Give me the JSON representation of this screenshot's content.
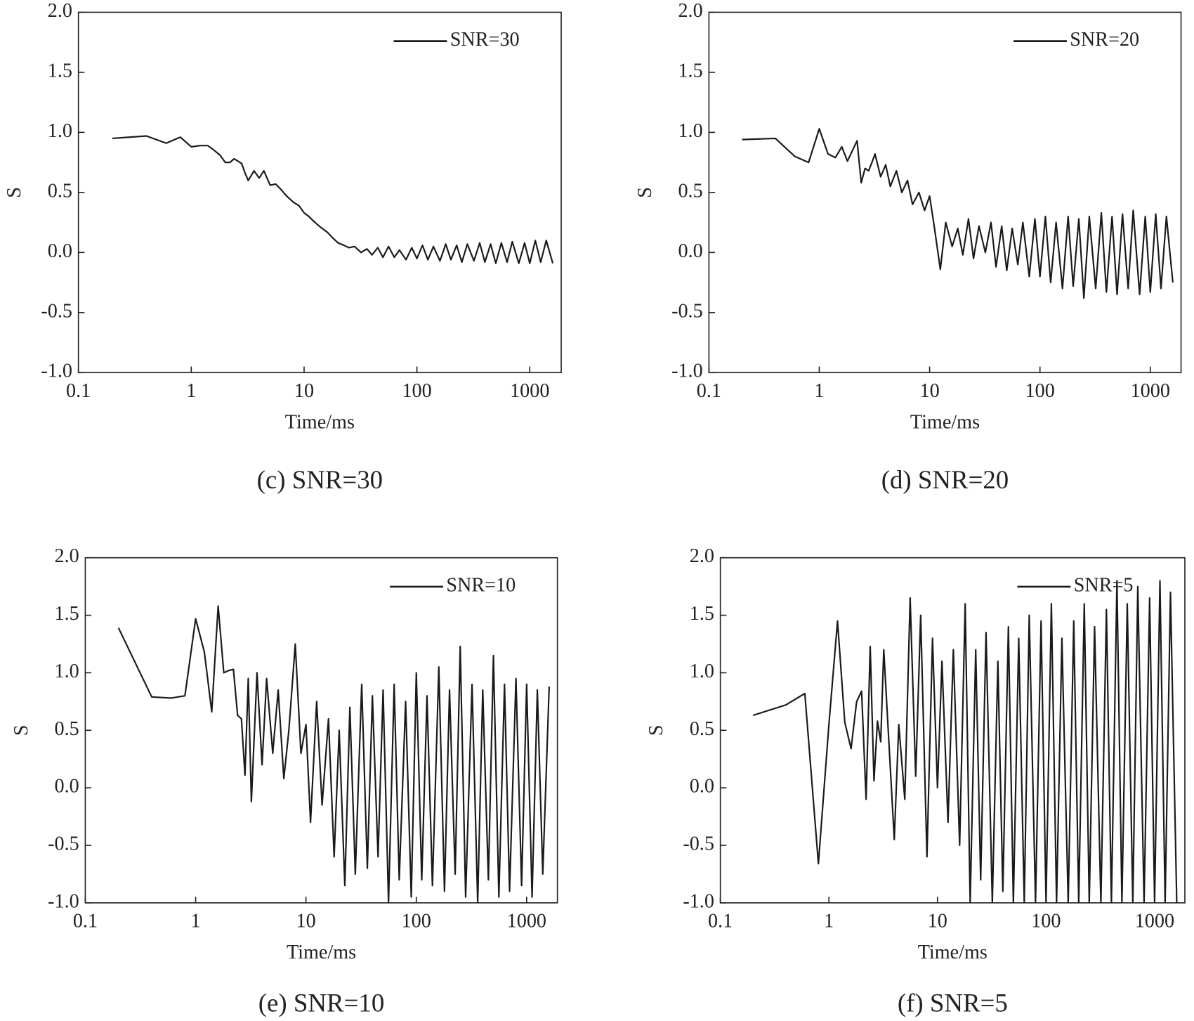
{
  "chart_data": [
    {
      "type": "line",
      "caption": "(c) SNR=30",
      "xlabel": "Time/ms",
      "ylabel": "S",
      "xscale": "log",
      "legend": "upper right",
      "xlim": [
        0.1,
        1900
      ],
      "xticks": [
        0.1,
        1,
        10,
        100,
        1000
      ],
      "ylim": [
        -1,
        2
      ],
      "yticks": [
        {
          "value": -1,
          "label": "-1.0"
        },
        -0.5,
        {
          "value": 0,
          "label": "0.0"
        },
        0.5,
        {
          "value": 1,
          "label": "1.0"
        },
        1.5,
        {
          "value": 2,
          "label": "2.0"
        }
      ],
      "x": [
        0.2,
        0.4,
        0.6,
        0.8,
        1,
        1.2,
        1.4,
        1.6,
        1.8,
        2,
        2.2,
        2.4,
        2.6,
        2.8,
        3,
        3.2,
        3.6,
        4,
        4.4,
        5,
        5.6,
        6.3,
        7,
        8,
        9,
        10,
        11,
        12.5,
        14,
        16,
        18,
        20,
        22.5,
        25,
        28,
        32,
        36,
        40,
        45,
        50,
        56,
        63,
        70,
        80,
        90,
        100,
        112,
        125,
        140,
        160,
        180,
        200,
        225,
        250,
        280,
        320,
        360,
        400,
        450,
        500,
        560,
        630,
        700,
        800,
        900,
        1000,
        1120,
        1250,
        1400,
        1600
      ],
      "series": [
        {
          "name": "SNR=30",
          "color": "#1a1a1a",
          "values": [
            0.95,
            0.97,
            0.91,
            0.96,
            0.88,
            0.89,
            0.89,
            0.85,
            0.81,
            0.75,
            0.75,
            0.78,
            0.76,
            0.74,
            0.66,
            0.6,
            0.68,
            0.62,
            0.68,
            0.56,
            0.57,
            0.52,
            0.47,
            0.42,
            0.39,
            0.33,
            0.3,
            0.25,
            0.21,
            0.17,
            0.12,
            0.08,
            0.06,
            0.04,
            0.05,
            0.0,
            0.03,
            -0.02,
            0.04,
            -0.04,
            0.05,
            -0.04,
            0.02,
            -0.06,
            0.04,
            -0.05,
            0.06,
            -0.06,
            0.05,
            -0.07,
            0.07,
            -0.06,
            0.06,
            -0.08,
            0.07,
            -0.07,
            0.08,
            -0.08,
            0.07,
            -0.09,
            0.08,
            -0.08,
            0.09,
            -0.09,
            0.08,
            -0.09,
            0.1,
            -0.08,
            0.1,
            -0.09
          ]
        }
      ]
    },
    {
      "type": "line",
      "caption": "(d) SNR=20",
      "xlabel": "Time/ms",
      "ylabel": "S",
      "xscale": "log",
      "legend": "upper right",
      "xlim": [
        0.1,
        1900
      ],
      "xticks": [
        0.1,
        1,
        10,
        100,
        1000
      ],
      "ylim": [
        -1,
        2
      ],
      "yticks": [
        {
          "value": -1,
          "label": "-1.0"
        },
        -0.5,
        {
          "value": 0,
          "label": "0.0"
        },
        0.5,
        {
          "value": 1,
          "label": "1.0"
        },
        1.5,
        {
          "value": 2,
          "label": "2.0"
        }
      ],
      "x": [
        0.2,
        0.4,
        0.6,
        0.8,
        1,
        1.2,
        1.4,
        1.6,
        1.8,
        2,
        2.2,
        2.4,
        2.6,
        2.8,
        3,
        3.2,
        3.6,
        4,
        4.4,
        5,
        5.6,
        6.3,
        7,
        8,
        9,
        10,
        11,
        12.5,
        14,
        16,
        18,
        20,
        22.5,
        25,
        28,
        32,
        36,
        40,
        45,
        50,
        56,
        63,
        70,
        80,
        90,
        100,
        112,
        125,
        140,
        160,
        180,
        200,
        225,
        250,
        280,
        320,
        360,
        400,
        450,
        500,
        560,
        630,
        700,
        800,
        900,
        1000,
        1120,
        1250,
        1400,
        1600
      ],
      "series": [
        {
          "name": "SNR=20",
          "color": "#1a1a1a",
          "values": [
            0.94,
            0.95,
            0.8,
            0.75,
            1.03,
            0.82,
            0.79,
            0.88,
            0.76,
            0.85,
            0.93,
            0.58,
            0.7,
            0.68,
            0.75,
            0.82,
            0.63,
            0.73,
            0.55,
            0.68,
            0.5,
            0.6,
            0.4,
            0.5,
            0.35,
            0.47,
            0.22,
            -0.14,
            0.25,
            0.05,
            0.2,
            -0.02,
            0.28,
            -0.05,
            0.22,
            0.0,
            0.25,
            -0.12,
            0.22,
            -0.15,
            0.2,
            -0.1,
            0.25,
            -0.2,
            0.28,
            -0.2,
            0.3,
            -0.25,
            0.25,
            -0.3,
            0.3,
            -0.28,
            0.28,
            -0.38,
            0.3,
            -0.3,
            0.33,
            -0.33,
            0.3,
            -0.35,
            0.32,
            -0.3,
            0.35,
            -0.35,
            0.3,
            -0.33,
            0.32,
            -0.3,
            0.3,
            -0.25
          ]
        }
      ]
    },
    {
      "type": "line",
      "caption": "(e) SNR=10",
      "xlabel": "Time/ms",
      "ylabel": "S",
      "xscale": "log",
      "legend": "upper right",
      "xlim": [
        0.1,
        1900
      ],
      "xticks": [
        0.1,
        1,
        10,
        100,
        1000
      ],
      "ylim": [
        -1,
        2
      ],
      "yticks": [
        {
          "value": -1,
          "label": "-1.0"
        },
        -0.5,
        {
          "value": 0,
          "label": "0.0"
        },
        0.5,
        {
          "value": 1,
          "label": "1.0"
        },
        1.5,
        {
          "value": 2,
          "label": "2.0"
        }
      ],
      "x": [
        0.2,
        0.4,
        0.6,
        0.8,
        1,
        1.2,
        1.4,
        1.6,
        1.8,
        2,
        2.2,
        2.4,
        2.6,
        2.8,
        3,
        3.2,
        3.6,
        4,
        4.4,
        5,
        5.6,
        6.3,
        7,
        8,
        9,
        10,
        11,
        12.5,
        14,
        16,
        18,
        20,
        22.5,
        25,
        28,
        32,
        36,
        40,
        45,
        50,
        56,
        63,
        70,
        80,
        90,
        100,
        112,
        125,
        140,
        160,
        180,
        200,
        225,
        250,
        280,
        320,
        360,
        400,
        450,
        500,
        560,
        630,
        700,
        800,
        900,
        1000,
        1120,
        1250,
        1400,
        1600
      ],
      "series": [
        {
          "name": "SNR=10",
          "color": "#1a1a1a",
          "values": [
            1.39,
            0.79,
            0.78,
            0.8,
            1.47,
            1.18,
            0.66,
            1.58,
            1.0,
            1.02,
            1.03,
            0.63,
            0.6,
            0.11,
            0.95,
            -0.12,
            1.0,
            0.2,
            0.95,
            0.3,
            0.85,
            0.08,
            0.5,
            1.25,
            0.3,
            0.55,
            -0.3,
            0.75,
            -0.15,
            0.6,
            -0.6,
            0.5,
            -0.85,
            0.7,
            -0.75,
            0.9,
            -0.7,
            0.8,
            -0.6,
            0.85,
            -1.0,
            0.9,
            -0.8,
            0.75,
            -0.95,
            1.0,
            -0.8,
            0.8,
            -0.85,
            1.05,
            -0.9,
            0.85,
            -0.75,
            1.23,
            -0.95,
            0.9,
            -1.0,
            0.85,
            -0.8,
            1.15,
            -0.95,
            0.9,
            -0.9,
            0.95,
            -0.85,
            0.9,
            -0.95,
            0.85,
            -0.75,
            0.88
          ]
        }
      ]
    },
    {
      "type": "line",
      "caption": "(f) SNR=5",
      "xlabel": "Time/ms",
      "ylabel": "S",
      "xscale": "log",
      "legend": "upper right",
      "xlim": [
        0.1,
        1900
      ],
      "xticks": [
        0.1,
        1,
        10,
        100,
        1000
      ],
      "ylim": [
        -1,
        2
      ],
      "yticks": [
        {
          "value": -1,
          "label": "-1.0"
        },
        -0.5,
        {
          "value": 0,
          "label": "0.0"
        },
        0.5,
        {
          "value": 1,
          "label": "1.0"
        },
        1.5,
        {
          "value": 2,
          "label": "2.0"
        }
      ],
      "x": [
        0.2,
        0.4,
        0.6,
        0.8,
        1,
        1.2,
        1.4,
        1.6,
        1.8,
        2,
        2.2,
        2.4,
        2.6,
        2.8,
        3,
        3.2,
        3.6,
        4,
        4.4,
        5,
        5.6,
        6.3,
        7,
        8,
        9,
        10,
        11,
        12.5,
        14,
        16,
        18,
        20,
        22.5,
        25,
        28,
        32,
        36,
        40,
        45,
        50,
        56,
        63,
        70,
        80,
        90,
        100,
        112,
        125,
        140,
        160,
        180,
        200,
        225,
        250,
        280,
        320,
        360,
        400,
        450,
        500,
        560,
        630,
        700,
        800,
        900,
        1000,
        1120,
        1250,
        1400,
        1600
      ],
      "series": [
        {
          "name": "SNR=5",
          "color": "#1a1a1a",
          "values": [
            0.63,
            0.72,
            0.82,
            -0.66,
            0.55,
            1.45,
            0.57,
            0.34,
            0.75,
            0.84,
            -0.1,
            1.23,
            0.06,
            0.58,
            0.4,
            1.2,
            0.33,
            -0.45,
            0.55,
            -0.1,
            1.65,
            0.1,
            1.5,
            -0.6,
            1.3,
            0.0,
            1.1,
            -0.3,
            1.2,
            -0.5,
            1.6,
            -1.0,
            1.2,
            -0.8,
            1.35,
            -1.0,
            1.1,
            -0.9,
            1.4,
            -1.0,
            1.3,
            -1.0,
            1.5,
            -1.0,
            1.45,
            -1.0,
            1.6,
            -1.0,
            1.3,
            -1.0,
            1.45,
            -1.0,
            1.6,
            -1.0,
            1.4,
            -1.0,
            1.55,
            -1.0,
            1.8,
            -1.0,
            1.6,
            -1.0,
            1.75,
            -1.0,
            1.65,
            -1.0,
            1.8,
            -1.0,
            1.7,
            -1.0
          ]
        }
      ]
    }
  ]
}
